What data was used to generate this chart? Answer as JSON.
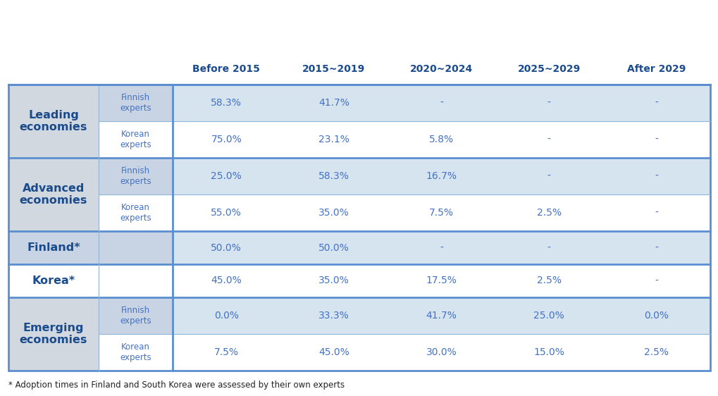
{
  "columns": [
    "Before 2015",
    "2015~2019",
    "2020~2024",
    "2025~2029",
    "After 2029"
  ],
  "rows": [
    {
      "group": "Leading\neconomies",
      "subrow": "Finnish\nexperts",
      "values": [
        "58.3%",
        "41.7%",
        "-",
        "-",
        "-"
      ],
      "bg_group": "#d2d8e0",
      "bg_subrow": "#c8d4e4",
      "bg_data": "#d6e4f0"
    },
    {
      "group": "",
      "subrow": "Korean\nexperts",
      "values": [
        "75.0%",
        "23.1%",
        "5.8%",
        "-",
        "-"
      ],
      "bg_group": "#d2d8e0",
      "bg_subrow": "#ffffff",
      "bg_data": "#ffffff"
    },
    {
      "group": "Advanced\neconomies",
      "subrow": "Finnish\nexperts",
      "values": [
        "25.0%",
        "58.3%",
        "16.7%",
        "-",
        "-"
      ],
      "bg_group": "#d2d8e0",
      "bg_subrow": "#c8d4e4",
      "bg_data": "#d6e4f0"
    },
    {
      "group": "",
      "subrow": "Korean\nexperts",
      "values": [
        "55.0%",
        "35.0%",
        "7.5%",
        "2.5%",
        "-"
      ],
      "bg_group": "#d2d8e0",
      "bg_subrow": "#ffffff",
      "bg_data": "#ffffff"
    },
    {
      "group": "Finland*",
      "subrow": null,
      "values": [
        "50.0%",
        "50.0%",
        "-",
        "-",
        "-"
      ],
      "bg_group": "#c8d4e4",
      "bg_subrow": "#c8d4e4",
      "bg_data": "#d6e4f0"
    },
    {
      "group": "Korea*",
      "subrow": null,
      "values": [
        "45.0%",
        "35.0%",
        "17.5%",
        "2.5%",
        "-"
      ],
      "bg_group": "#ffffff",
      "bg_subrow": "#ffffff",
      "bg_data": "#ffffff"
    },
    {
      "group": "Emerging\neconomies",
      "subrow": "Finnish\nexperts",
      "values": [
        "0.0%",
        "33.3%",
        "41.7%",
        "25.0%",
        "0.0%"
      ],
      "bg_group": "#d2d8e0",
      "bg_subrow": "#c8d4e4",
      "bg_data": "#d6e4f0"
    },
    {
      "group": "",
      "subrow": "Korean\nexperts",
      "values": [
        "7.5%",
        "45.0%",
        "30.0%",
        "15.0%",
        "2.5%"
      ],
      "bg_group": "#d2d8e0",
      "bg_subrow": "#ffffff",
      "bg_data": "#ffffff"
    }
  ],
  "group_spans": [
    2,
    2,
    1,
    1,
    2
  ],
  "group_start_rows": [
    0,
    2,
    4,
    5,
    6
  ],
  "group_labels": [
    "Leading\neconomies",
    "Advanced\neconomies",
    "Finland*",
    "Korea*",
    "Emerging\neconomies"
  ],
  "footer": "* Adoption times in Finland and South Korea were assessed by their own experts",
  "header_text_color": "#1a4b8c",
  "group_text_color": "#1a4b8c",
  "data_text_color": "#4472c4",
  "subrow_text_color": "#4472c4",
  "border_color": "#5b8ed0",
  "thin_border_color": "#8fb4d8"
}
